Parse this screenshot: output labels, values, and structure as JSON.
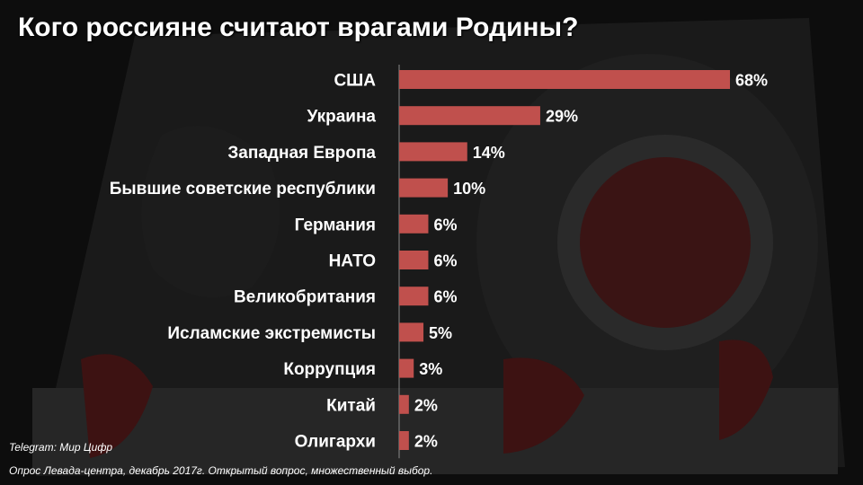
{
  "title": "Кого россияне считают врагами Родины?",
  "source": "Telegram: Мир Цифр",
  "note": "Опрос Левада-центра, декабрь 2017г. Открытый вопрос, множественный выбор.",
  "colors": {
    "bar": "#c0504d",
    "background": "#0d0d0d",
    "text": "#ffffff"
  },
  "chart_data": {
    "type": "bar",
    "orientation": "horizontal",
    "categories": [
      "США",
      "Украина",
      "Западная Европа",
      "Бывшие советские республики",
      "Германия",
      "НАТО",
      "Великобритания",
      "Исламские экстремисты",
      "Коррупция",
      "Китай",
      "Олигархи"
    ],
    "values": [
      68,
      29,
      14,
      10,
      6,
      6,
      6,
      5,
      3,
      2,
      2
    ],
    "data_labels": [
      "68%",
      "29%",
      "14%",
      "10%",
      "6%",
      "6%",
      "6%",
      "5%",
      "3%",
      "2%",
      "2%"
    ],
    "xlim": [
      0,
      68
    ],
    "grid": false,
    "legend": "none"
  }
}
